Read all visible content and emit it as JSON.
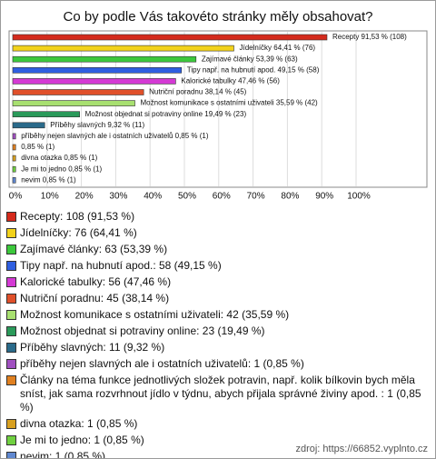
{
  "chart_data": {
    "type": "barh",
    "title": "Co by podle Vás takovéto stránky měly obsahovat?",
    "categories": [
      "Recepty",
      "Jídelníčky",
      "Zajímavé články",
      "Tipy např. na hubnutí apod.",
      "Kalorické tabulky",
      "Nutriční poradnu",
      "Možnost komunikace s ostatními uživateli",
      "Možnost objednat si potraviny online",
      "Příběhy slavných",
      "příběhy nejen slavných ale i ostatních uživatelů",
      "Články na téma funkce jednotlivých složek potravin, např. kolik bílkovin bych měla sníst, jak sama rozvrhnout jídlo v týdnu, abych přijala správné živiny apod. :",
      "divna otazka",
      "Je mi to jedno",
      "nevim"
    ],
    "values": [
      91.53,
      64.41,
      53.39,
      49.15,
      47.46,
      38.14,
      35.59,
      19.49,
      9.32,
      0.85,
      0.85,
      0.85,
      0.85,
      0.85
    ],
    "value_labels": [
      "Recepty 91,53 % (108)",
      "Jídelníčky 64,41 % (76)",
      "Zajímavé články 53,39 % (63)",
      "Tipy např. na hubnutí apod. 49,15 % (58)",
      "Kalorické tabulky 47,46 % (56)",
      "Nutriční poradnu 38,14 % (45)",
      "Možnost komunikace s ostatními uživateli 35,59 % (42)",
      "Možnost objednat si potraviny online 19,49 % (23)",
      "Příběhy slavných 9,32 % (11)",
      "příběhy nejen slavných ale i ostatních uživatelů 0,85 % (1)",
      "0,85 % (1)",
      "divna otazka 0,85 % (1)",
      "Je mi to jedno 0,85 % (1)",
      "nevim 0,85 % (1)"
    ],
    "legend": [
      "Recepty: 108 (91,53 %)",
      "Jídelníčky: 76 (64,41 %)",
      "Zajímavé články: 63 (53,39 %)",
      "Tipy např. na hubnutí apod.: 58 (49,15 %)",
      "Kalorické tabulky: 56 (47,46 %)",
      "Nutriční poradnu: 45 (38,14 %)",
      "Možnost komunikace s ostatními uživateli: 42 (35,59 %)",
      "Možnost objednat si potraviny online: 23 (19,49 %)",
      "Příběhy slavných: 11 (9,32 %)",
      "příběhy nejen slavných ale i ostatních uživatelů: 1 (0,85 %)",
      "Články na téma funkce jednotlivých složek potravin, např. kolik bílkovin bych měla sníst, jak sama rozvrhnout jídlo v týdnu, abych přijala správné živiny apod. : 1 (0,85 %)",
      "divna otazka: 1 (0,85 %)",
      "Je mi to jedno: 1 (0,85 %)",
      "nevim: 1 (0,85 %)"
    ],
    "colors": [
      "#d42a1c",
      "#f2d21b",
      "#3cc83c",
      "#2f5fe0",
      "#d43ad4",
      "#e0502a",
      "#a8e070",
      "#2a9a5a",
      "#2a6a8a",
      "#a050c0",
      "#e08020",
      "#d8a020",
      "#70d040",
      "#6088d0"
    ],
    "xlim": [
      0,
      100
    ],
    "xticks": [
      {
        "value": 0,
        "label": "0%"
      },
      {
        "value": 10,
        "label": "10%"
      },
      {
        "value": 20,
        "label": "20%"
      },
      {
        "value": 30,
        "label": "30%"
      },
      {
        "value": 40,
        "label": "40%"
      },
      {
        "value": 50,
        "label": "50%"
      },
      {
        "value": 60,
        "label": "60%"
      },
      {
        "value": 70,
        "label": "70%"
      },
      {
        "value": 80,
        "label": "80%"
      },
      {
        "value": 90,
        "label": "90%"
      },
      {
        "value": 100,
        "label": "100%"
      }
    ],
    "grid": true,
    "source": "zdroj: https://66852.vyplnto.cz"
  }
}
